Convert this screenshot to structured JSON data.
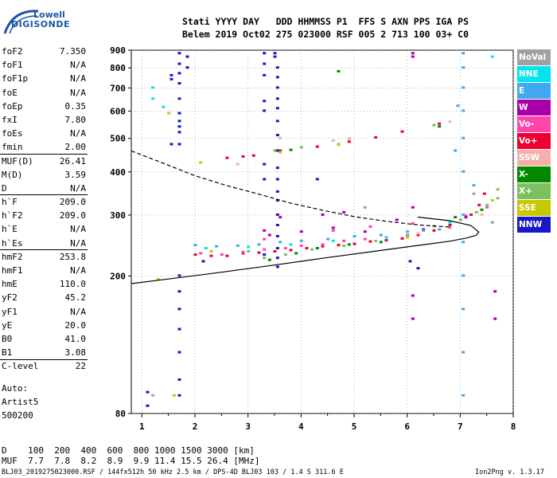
{
  "logo": {
    "line1": "Lowell",
    "line2": "DIGISONDE"
  },
  "header": {
    "row1": "Stati YYYY DAY   DDD HHMMSS P1  FFS S AXN PPS IGA PS",
    "row2": "Belem 2019 Oct02 275 023000 RSF 005 2 713 100 03+ C0"
  },
  "params": [
    {
      "name": "foF2",
      "value": "7.350"
    },
    {
      "name": "foF1",
      "value": "N/A"
    },
    {
      "name": "foF1p",
      "value": "N/A"
    },
    {
      "name": "foE",
      "value": "N/A"
    },
    {
      "name": "foEp",
      "value": "0.35"
    },
    {
      "name": "fxI",
      "value": "7.80"
    },
    {
      "name": "foEs",
      "value": "N/A"
    },
    {
      "name": "fmin",
      "value": "2.00"
    },
    {
      "name": "MUF(D)",
      "value": "26.41"
    },
    {
      "name": "M(D)",
      "value": "3.59"
    },
    {
      "name": "D",
      "value": "N/A"
    },
    {
      "name": "h`F",
      "value": "209.0"
    },
    {
      "name": "h`F2",
      "value": "209.0"
    },
    {
      "name": "h`E",
      "value": "N/A"
    },
    {
      "name": "h`Es",
      "value": "N/A"
    },
    {
      "name": "hmF2",
      "value": "253.8"
    },
    {
      "name": "hmF1",
      "value": "N/A"
    },
    {
      "name": "hmE",
      "value": "110.0"
    },
    {
      "name": "yF2",
      "value": "45.2"
    },
    {
      "name": "yF1",
      "value": "N/A"
    },
    {
      "name": "yE",
      "value": "20.0"
    },
    {
      "name": "B0",
      "value": "41.0"
    },
    {
      "name": "B1",
      "value": "3.08"
    },
    {
      "name": "C-level",
      "value": "22"
    }
  ],
  "autoscaling": {
    "line1": "Auto:",
    "line2": "Artist5",
    "line3": "500200"
  },
  "legend": [
    {
      "label": "NoVal",
      "color": "#a0a0a0"
    },
    {
      "label": "NNE",
      "color": "#00e5ee"
    },
    {
      "label": "E",
      "color": "#40a8f0"
    },
    {
      "label": "W",
      "color": "#a800a8"
    },
    {
      "label": "Vo-",
      "color": "#ff44aa"
    },
    {
      "label": "Vo+",
      "color": "#ee0033"
    },
    {
      "label": "SSW",
      "color": "#f4b0a8"
    },
    {
      "label": "X-",
      "color": "#008800"
    },
    {
      "label": "X+",
      "color": "#7cc060"
    },
    {
      "label": "SSE",
      "color": "#c8c800"
    },
    {
      "label": "NNW",
      "color": "#1818c8"
    }
  ],
  "muf_table": {
    "row1": "D    100  200  400  600  800 1000 1500 3000 [km]",
    "row2": "MUF  7.7  7.8  8.2  8.9  9.9 11.4 15.5 26.4 [MHz]"
  },
  "footer": {
    "left": "BLJ03_2019275023000.RSF / 144fx512h 50 kHz 2.5 km / DPS-4D BLJ03 103 / 1.4 S 311.6 E",
    "right": "Ion2Png v. 1.3.17"
  },
  "chart_data": {
    "type": "scatter",
    "title": "",
    "xlabel": "",
    "ylabel": "",
    "xlim": [
      0.8,
      8.0
    ],
    "ylim": [
      80,
      900
    ],
    "yscale": "log",
    "x_ticks": [
      1,
      2,
      3,
      4,
      5,
      6,
      7,
      8
    ],
    "y_ticks": [
      80,
      200,
      300,
      400,
      500,
      600,
      700,
      800,
      900
    ],
    "grid": "dotted",
    "legend_position": "right",
    "series": [
      {
        "color": "#ee0033",
        "points": [
          [
            2.0,
            230
          ],
          [
            2.3,
            228
          ],
          [
            2.6,
            228
          ],
          [
            2.9,
            232
          ],
          [
            3.2,
            233
          ],
          [
            3.5,
            235
          ],
          [
            3.8,
            237
          ],
          [
            4.1,
            240
          ],
          [
            4.4,
            243
          ],
          [
            4.7,
            245
          ],
          [
            5.0,
            247
          ],
          [
            5.3,
            251
          ],
          [
            5.6,
            253
          ],
          [
            5.9,
            256
          ],
          [
            6.2,
            262
          ],
          [
            6.5,
            270
          ],
          [
            6.8,
            280
          ],
          [
            7.0,
            290
          ],
          [
            7.2,
            300
          ],
          [
            7.35,
            320
          ],
          [
            7.45,
            345
          ],
          [
            2.6,
            438
          ],
          [
            2.9,
            442
          ],
          [
            3.1,
            445
          ],
          [
            3.6,
            460
          ],
          [
            4.3,
            472
          ],
          [
            4.9,
            488
          ],
          [
            5.4,
            502
          ],
          [
            5.9,
            522
          ],
          [
            6.6,
            550
          ]
        ]
      },
      {
        "color": "#ff44aa",
        "points": [
          [
            2.1,
            232
          ],
          [
            2.5,
            230
          ],
          [
            2.9,
            234
          ],
          [
            3.3,
            238
          ],
          [
            3.7,
            240
          ],
          [
            4.0,
            244
          ],
          [
            4.4,
            246
          ],
          [
            4.8,
            252
          ],
          [
            5.2,
            255
          ],
          [
            5.6,
            258
          ],
          [
            6.0,
            262
          ],
          [
            6.5,
            278
          ],
          [
            7.1,
            298
          ],
          [
            7.5,
            315
          ],
          [
            3.3,
            255
          ],
          [
            4.6,
            270
          ],
          [
            5.3,
            277
          ],
          [
            6.1,
            283
          ]
        ]
      },
      {
        "color": "#a800a8",
        "points": [
          [
            3.4,
            262
          ],
          [
            3.6,
            295
          ],
          [
            4.0,
            268
          ],
          [
            4.4,
            300
          ],
          [
            4.8,
            305
          ],
          [
            5.2,
            268
          ],
          [
            5.8,
            290
          ],
          [
            6.1,
            315
          ],
          [
            6.1,
            860
          ],
          [
            6.1,
            880
          ],
          [
            6.1,
            150
          ],
          [
            6.1,
            175
          ],
          [
            7.1,
            295
          ],
          [
            7.65,
            180
          ],
          [
            7.65,
            150
          ],
          [
            3.3,
            270
          ],
          [
            4.6,
            275
          ],
          [
            6.3,
            272
          ]
        ]
      },
      {
        "color": "#40a8f0",
        "points": [
          [
            2.0,
            245
          ],
          [
            2.4,
            243
          ],
          [
            2.8,
            244
          ],
          [
            3.2,
            246
          ],
          [
            3.6,
            250
          ],
          [
            4.0,
            252
          ],
          [
            4.5,
            255
          ],
          [
            5.0,
            260
          ],
          [
            5.5,
            262
          ],
          [
            6.0,
            268
          ],
          [
            6.3,
            270
          ],
          [
            6.6,
            272
          ],
          [
            7.05,
            880
          ],
          [
            7.05,
            800
          ],
          [
            7.05,
            700
          ],
          [
            7.05,
            600
          ],
          [
            7.05,
            500
          ],
          [
            7.05,
            400
          ],
          [
            7.05,
            300
          ],
          [
            7.05,
            250
          ],
          [
            7.05,
            200
          ],
          [
            7.05,
            160
          ],
          [
            7.05,
            120
          ],
          [
            7.05,
            90
          ],
          [
            6.95,
            620
          ],
          [
            6.9,
            460
          ],
          [
            7.25,
            365
          ]
        ]
      },
      {
        "color": "#00e5ee",
        "points": [
          [
            1.2,
            700
          ],
          [
            1.2,
            650
          ],
          [
            1.4,
            615
          ],
          [
            2.2,
            240
          ],
          [
            3.0,
            242
          ],
          [
            3.8,
            246
          ],
          [
            4.6,
            252
          ],
          [
            5.6,
            258
          ],
          [
            6.8,
            285
          ],
          [
            7.6,
            860
          ]
        ]
      },
      {
        "color": "#7cc060",
        "points": [
          [
            3.3,
            225
          ],
          [
            3.7,
            230
          ],
          [
            4.2,
            238
          ],
          [
            4.8,
            244
          ],
          [
            5.4,
            252
          ],
          [
            6.0,
            260
          ],
          [
            6.5,
            278
          ],
          [
            7.0,
            290
          ],
          [
            7.3,
            305
          ],
          [
            7.5,
            320
          ],
          [
            7.7,
            335
          ],
          [
            7.7,
            355
          ],
          [
            3.0,
            235
          ],
          [
            4.0,
            470
          ],
          [
            4.7,
            480
          ],
          [
            6.5,
            545
          ],
          [
            3.5,
            460
          ]
        ]
      },
      {
        "color": "#008800",
        "points": [
          [
            3.4,
            222
          ],
          [
            3.9,
            232
          ],
          [
            4.3,
            240
          ],
          [
            4.9,
            246
          ],
          [
            5.5,
            250
          ],
          [
            6.9,
            295
          ],
          [
            7.4,
            310
          ],
          [
            4.7,
            780
          ],
          [
            6.6,
            540
          ],
          [
            3.8,
            462
          ]
        ]
      },
      {
        "color": "#c8c800",
        "points": [
          [
            1.3,
            195
          ],
          [
            1.6,
            90
          ],
          [
            2.1,
            425
          ],
          [
            2.3,
            235
          ],
          [
            3.6,
            455
          ],
          [
            4.7,
            478
          ],
          [
            6.0,
            258
          ],
          [
            7.6,
            330
          ],
          [
            1.5,
            590
          ]
        ]
      },
      {
        "color": "#f4b0a8",
        "points": [
          [
            6.2,
            265
          ],
          [
            6.8,
            558
          ],
          [
            4.6,
            492
          ],
          [
            4.9,
            498
          ],
          [
            7.4,
            300
          ],
          [
            3.6,
            500
          ],
          [
            2.8,
            420
          ]
        ]
      },
      {
        "color": "#1818c8",
        "points": [
          [
            1.7,
            880
          ],
          [
            1.7,
            820
          ],
          [
            1.7,
            770
          ],
          [
            1.7,
            720
          ],
          [
            1.7,
            650
          ],
          [
            1.7,
            590
          ],
          [
            1.7,
            560
          ],
          [
            1.7,
            540
          ],
          [
            1.7,
            520
          ],
          [
            1.7,
            480
          ],
          [
            1.7,
            200
          ],
          [
            1.7,
            180
          ],
          [
            1.7,
            160
          ],
          [
            1.7,
            140
          ],
          [
            1.7,
            120
          ],
          [
            1.7,
            100
          ],
          [
            1.7,
            90
          ],
          [
            1.55,
            760
          ],
          [
            1.55,
            740
          ],
          [
            1.55,
            480
          ],
          [
            1.85,
            800
          ],
          [
            1.85,
            860
          ],
          [
            3.3,
            880
          ],
          [
            3.3,
            820
          ],
          [
            3.3,
            760
          ],
          [
            3.3,
            640
          ],
          [
            3.3,
            600
          ],
          [
            3.3,
            420
          ],
          [
            3.3,
            380
          ],
          [
            3.3,
            230
          ],
          [
            3.5,
            880
          ],
          [
            3.5,
            860
          ],
          [
            3.55,
            800
          ],
          [
            3.55,
            750
          ],
          [
            3.55,
            700
          ],
          [
            3.55,
            650
          ],
          [
            3.55,
            610
          ],
          [
            3.55,
            560
          ],
          [
            3.55,
            510
          ],
          [
            3.55,
            460
          ],
          [
            3.55,
            410
          ],
          [
            3.55,
            380
          ],
          [
            3.55,
            350
          ],
          [
            3.55,
            330
          ],
          [
            3.55,
            300
          ],
          [
            3.55,
            280
          ],
          [
            3.55,
            260
          ],
          [
            3.55,
            240
          ],
          [
            3.55,
            225
          ],
          [
            3.55,
            212
          ],
          [
            1.1,
            92
          ],
          [
            1.1,
            84
          ],
          [
            4.3,
            380
          ],
          [
            6.05,
            220
          ],
          [
            6.2,
            210
          ],
          [
            2.15,
            220
          ]
        ]
      },
      {
        "color": "#a0a0a0",
        "points": [
          [
            1.2,
            90
          ],
          [
            5.2,
            315
          ],
          [
            6.8,
            275
          ],
          [
            7.25,
            345
          ],
          [
            7.6,
            285
          ]
        ]
      }
    ],
    "profile_solid": [
      [
        0.8,
        190
      ],
      [
        1.5,
        196
      ],
      [
        2.5,
        205
      ],
      [
        3.5,
        215
      ],
      [
        4.5,
        226
      ],
      [
        5.5,
        237
      ],
      [
        6.2,
        245
      ],
      [
        6.8,
        252
      ],
      [
        7.1,
        257
      ],
      [
        7.3,
        262
      ],
      [
        7.35,
        268
      ],
      [
        7.2,
        280
      ],
      [
        6.8,
        289
      ],
      [
        6.2,
        296
      ]
    ],
    "profile_dashed": [
      [
        0.8,
        460
      ],
      [
        1.3,
        430
      ],
      [
        2.0,
        390
      ],
      [
        2.6,
        365
      ],
      [
        3.2,
        345
      ],
      [
        3.8,
        325
      ],
      [
        4.4,
        310
      ],
      [
        5.0,
        297
      ],
      [
        5.6,
        288
      ],
      [
        6.2,
        281
      ],
      [
        6.8,
        277
      ]
    ]
  }
}
